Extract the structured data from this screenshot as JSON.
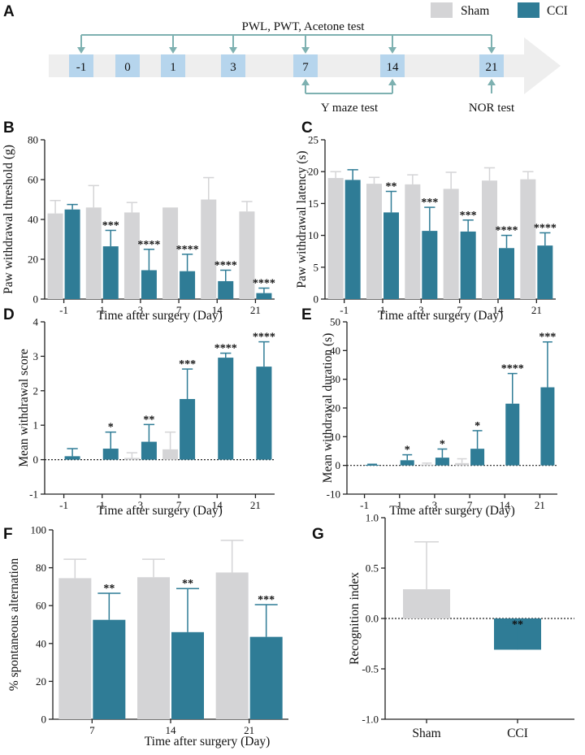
{
  "legend": {
    "sham_label": "Sham",
    "cci_label": "CCI",
    "sham_color": "#d4d4d6",
    "cci_color": "#2f7c96",
    "error_color_sham": "#d4d4d6",
    "error_color_cci": "#2f7c96"
  },
  "timeline": {
    "panel_letter": "A",
    "days": [
      "-1",
      "0",
      "1",
      "3",
      "7",
      "14",
      "21"
    ],
    "top_label": "PWL, PWT, Acetone test",
    "top_days": [
      "-1",
      "1",
      "3",
      "7",
      "14",
      "21"
    ],
    "ymaze_label": "Y maze test",
    "ymaze_days": [
      "7",
      "14"
    ],
    "nor_label": "NOR test",
    "nor_day": "21"
  },
  "chart_data": [
    {
      "id": "B",
      "type": "bar",
      "panel_letter": "B",
      "categories": [
        "-1",
        "1",
        "3",
        "7",
        "14",
        "21"
      ],
      "xlabel": "Time after surgery (Day)",
      "ylabel": "Paw withdrawal threshold (g)",
      "ylim": [
        0,
        80
      ],
      "yticks": [
        0,
        20,
        40,
        60,
        80
      ],
      "series": [
        {
          "name": "Sham",
          "values": [
            43,
            46,
            43.5,
            46,
            50,
            44
          ],
          "errors": [
            6.5,
            11,
            5,
            0,
            11,
            5
          ]
        },
        {
          "name": "CCI",
          "values": [
            45,
            26.5,
            14.5,
            14,
            9,
            3
          ],
          "errors": [
            2.5,
            8,
            10.5,
            8.5,
            5.5,
            2.5
          ]
        }
      ],
      "significance": [
        "",
        "***",
        "****",
        "****",
        "****",
        "****"
      ]
    },
    {
      "id": "C",
      "type": "bar",
      "panel_letter": "C",
      "categories": [
        "-1",
        "1",
        "3",
        "7",
        "14",
        "21"
      ],
      "xlabel": "Time after surgery (Day)",
      "ylabel": "Paw withdrawal latency (s)",
      "ylim": [
        0,
        25
      ],
      "yticks": [
        0,
        5,
        10,
        15,
        20,
        25
      ],
      "series": [
        {
          "name": "Sham",
          "values": [
            19,
            18.1,
            18,
            17.3,
            18.6,
            18.8
          ],
          "errors": [
            1,
            1,
            1.5,
            2.6,
            2,
            1.2
          ]
        },
        {
          "name": "CCI",
          "values": [
            18.7,
            13.6,
            10.7,
            10.6,
            8,
            8.4
          ],
          "errors": [
            1.6,
            3.3,
            3.7,
            1.8,
            2,
            2
          ]
        }
      ],
      "significance": [
        "",
        "**",
        "***",
        "***",
        "****",
        "****"
      ]
    },
    {
      "id": "D",
      "type": "bar",
      "panel_letter": "D",
      "categories": [
        "-1",
        "1",
        "3",
        "7",
        "14",
        "21"
      ],
      "xlabel": "Time after surgery (Day)",
      "ylabel": "Mean withdrawal score",
      "ylim": [
        -1,
        4
      ],
      "yticks": [
        -1,
        0,
        1,
        2,
        3,
        4
      ],
      "baseline": 0,
      "series": [
        {
          "name": "Sham",
          "values": [
            0,
            0,
            0.05,
            0.3,
            0,
            0
          ],
          "errors": [
            0,
            0,
            0.15,
            0.5,
            0,
            0
          ]
        },
        {
          "name": "CCI",
          "values": [
            0.1,
            0.32,
            0.52,
            1.76,
            2.96,
            2.7
          ],
          "errors": [
            0.22,
            0.48,
            0.5,
            0.87,
            0.13,
            0.72
          ]
        }
      ],
      "significance": [
        "",
        "*",
        "**",
        "***",
        "****",
        "****"
      ]
    },
    {
      "id": "E",
      "type": "bar",
      "panel_letter": "E",
      "categories": [
        "-1",
        "1",
        "3",
        "7",
        "14",
        "21"
      ],
      "xlabel": "Time after surgery (Day)",
      "ylabel": "Mean withdrawal duration (s)",
      "ylim": [
        -10,
        50
      ],
      "yticks": [
        -10,
        0,
        10,
        20,
        30,
        40,
        50
      ],
      "baseline": 0,
      "series": [
        {
          "name": "Sham",
          "values": [
            0,
            0,
            0.3,
            0.8,
            0,
            0
          ],
          "errors": [
            0,
            0,
            0.5,
            1.5,
            0,
            0
          ]
        },
        {
          "name": "CCI",
          "values": [
            0.2,
            1.8,
            2.7,
            5.8,
            21.5,
            27.2
          ],
          "errors": [
            0.2,
            1.9,
            3,
            6.3,
            10.5,
            15.8
          ]
        }
      ],
      "significance": [
        "",
        "*",
        "*",
        "*",
        "****",
        "***"
      ]
    },
    {
      "id": "F",
      "type": "bar",
      "panel_letter": "F",
      "categories": [
        "7",
        "14",
        "21"
      ],
      "xlabel": "Time after surgery (Day)",
      "ylabel": "% spontaneous alternation",
      "ylim": [
        0,
        100
      ],
      "yticks": [
        0,
        20,
        40,
        60,
        80,
        100
      ],
      "series": [
        {
          "name": "Sham",
          "values": [
            74.5,
            75,
            77.5
          ],
          "errors": [
            10,
            9.5,
            17
          ]
        },
        {
          "name": "CCI",
          "values": [
            52.5,
            46,
            43.5
          ],
          "errors": [
            14,
            23,
            17
          ]
        }
      ],
      "significance": [
        "**",
        "**",
        "***"
      ]
    },
    {
      "id": "G",
      "type": "bar",
      "panel_letter": "G",
      "categories": [
        "Sham",
        "CCI"
      ],
      "xlabel": "",
      "ylabel": "Recognition index",
      "ylim": [
        -1.0,
        1.0
      ],
      "yticks": [
        "-1.0",
        "-0.5",
        "0.0",
        "0.5",
        "1.0"
      ],
      "baseline": 0,
      "values": [
        0.29,
        -0.31
      ],
      "errors": [
        0.47,
        0.25
      ],
      "significance": [
        "",
        "**"
      ]
    }
  ]
}
